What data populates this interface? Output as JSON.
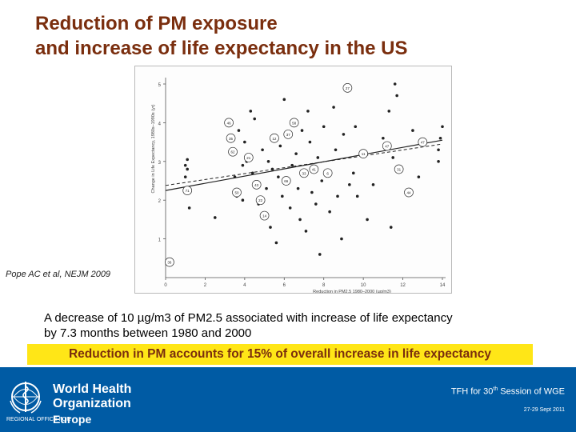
{
  "slide": {
    "title_line1": "Reduction of PM exposure",
    "title_line2": "and increase of life expectancy in the US",
    "citation": "Pope AC et al, NEJM 2009",
    "finding_line1": "A decrease of 10 µg/m3 of PM2.5  associated with increase of life expectancy",
    "finding_line2": "by 7.3 months between 1980 and 2000",
    "highlight": "Reduction in PM accounts for 15% of overall increase in life expectancy"
  },
  "footer": {
    "org_line1": "World Health",
    "org_line2": "Organization",
    "region_label": "REGIONAL OFFICE FOR",
    "region_name": "Europe",
    "session_prefix": "TFH for 30",
    "session_sup": "th",
    "session_suffix": " Session of WGE",
    "dates": "27-29 Sept 2011",
    "colors": {
      "footer_bg": "#005ba4",
      "title": "#7a2e0e",
      "highlight_bg": "#ffe617"
    }
  },
  "chart_data": {
    "type": "scatter",
    "xlabel": "Reduction in PM2.5 1980–2000 (µg/m3)",
    "ylabel": "Change in Life Expectancy, 1980s–1990s (yr)",
    "xlim": [
      0,
      14
    ],
    "ylim": [
      0,
      5
    ],
    "xticks": [
      0,
      2,
      4,
      6,
      8,
      10,
      12,
      14
    ],
    "yticks": [
      1,
      2,
      3,
      4,
      5
    ],
    "regression_solid": {
      "x": [
        0,
        14
      ],
      "y": [
        2.25,
        3.55
      ]
    },
    "regression_dashed": {
      "x": [
        0,
        14
      ],
      "y": [
        2.38,
        3.45
      ]
    },
    "points": [
      {
        "x": 0.2,
        "y": 0.4,
        "label": "36"
      },
      {
        "x": 1.1,
        "y": 2.25,
        "label": "71"
      },
      {
        "x": 1.1,
        "y": 3.05
      },
      {
        "x": 1.1,
        "y": 2.8
      },
      {
        "x": 1.0,
        "y": 2.9
      },
      {
        "x": 1.0,
        "y": 2.6
      },
      {
        "x": 1.2,
        "y": 1.8
      },
      {
        "x": 2.5,
        "y": 1.55
      },
      {
        "x": 3.2,
        "y": 4.0,
        "label": "46"
      },
      {
        "x": 3.4,
        "y": 3.25,
        "label": "62"
      },
      {
        "x": 3.3,
        "y": 3.6,
        "label": "35"
      },
      {
        "x": 3.5,
        "y": 2.6
      },
      {
        "x": 3.6,
        "y": 2.1
      },
      {
        "x": 3.6,
        "y": 2.2,
        "label": "50"
      },
      {
        "x": 3.7,
        "y": 3.8
      },
      {
        "x": 3.9,
        "y": 2.0
      },
      {
        "x": 3.9,
        "y": 2.9
      },
      {
        "x": 4.0,
        "y": 3.5
      },
      {
        "x": 4.1,
        "y": 3.0
      },
      {
        "x": 4.2,
        "y": 3.1,
        "label": "21"
      },
      {
        "x": 4.3,
        "y": 4.3
      },
      {
        "x": 4.4,
        "y": 2.7
      },
      {
        "x": 4.5,
        "y": 4.1
      },
      {
        "x": 4.6,
        "y": 2.4,
        "label": "43"
      },
      {
        "x": 4.7,
        "y": 1.9
      },
      {
        "x": 4.8,
        "y": 2.0,
        "label": "22"
      },
      {
        "x": 4.9,
        "y": 3.3
      },
      {
        "x": 5.0,
        "y": 1.6,
        "label": "14"
      },
      {
        "x": 5.1,
        "y": 2.3
      },
      {
        "x": 5.2,
        "y": 3.0
      },
      {
        "x": 5.3,
        "y": 1.3
      },
      {
        "x": 5.4,
        "y": 2.8
      },
      {
        "x": 5.5,
        "y": 3.6,
        "label": "12"
      },
      {
        "x": 5.6,
        "y": 0.9
      },
      {
        "x": 5.7,
        "y": 2.6
      },
      {
        "x": 5.8,
        "y": 3.4
      },
      {
        "x": 5.9,
        "y": 2.1
      },
      {
        "x": 6.0,
        "y": 4.6
      },
      {
        "x": 6.1,
        "y": 2.5,
        "label": "66"
      },
      {
        "x": 6.2,
        "y": 3.7,
        "label": "37"
      },
      {
        "x": 6.3,
        "y": 1.8
      },
      {
        "x": 6.4,
        "y": 2.9
      },
      {
        "x": 6.5,
        "y": 4.0,
        "label": "58"
      },
      {
        "x": 6.6,
        "y": 3.2
      },
      {
        "x": 6.7,
        "y": 2.3
      },
      {
        "x": 6.8,
        "y": 1.5
      },
      {
        "x": 6.9,
        "y": 3.8
      },
      {
        "x": 7.0,
        "y": 2.7,
        "label": "33"
      },
      {
        "x": 7.1,
        "y": 1.2
      },
      {
        "x": 7.2,
        "y": 4.3
      },
      {
        "x": 7.3,
        "y": 3.5
      },
      {
        "x": 7.4,
        "y": 2.2
      },
      {
        "x": 7.5,
        "y": 2.8,
        "label": "41"
      },
      {
        "x": 7.6,
        "y": 1.9
      },
      {
        "x": 7.7,
        "y": 3.1
      },
      {
        "x": 7.8,
        "y": 0.6
      },
      {
        "x": 7.9,
        "y": 2.5
      },
      {
        "x": 8.0,
        "y": 3.9
      },
      {
        "x": 8.2,
        "y": 2.7,
        "label": "6"
      },
      {
        "x": 8.3,
        "y": 1.7
      },
      {
        "x": 8.5,
        "y": 4.4
      },
      {
        "x": 8.6,
        "y": 3.3
      },
      {
        "x": 8.7,
        "y": 2.1
      },
      {
        "x": 8.9,
        "y": 1.0
      },
      {
        "x": 9.0,
        "y": 3.7
      },
      {
        "x": 9.2,
        "y": 4.9,
        "label": "27"
      },
      {
        "x": 9.3,
        "y": 2.4
      },
      {
        "x": 9.5,
        "y": 2.7
      },
      {
        "x": 9.6,
        "y": 3.9
      },
      {
        "x": 9.7,
        "y": 2.1
      },
      {
        "x": 10.0,
        "y": 3.2,
        "label": "11"
      },
      {
        "x": 10.2,
        "y": 1.5
      },
      {
        "x": 10.5,
        "y": 2.4
      },
      {
        "x": 11.0,
        "y": 3.6
      },
      {
        "x": 11.2,
        "y": 3.4,
        "label": "47"
      },
      {
        "x": 11.3,
        "y": 4.3
      },
      {
        "x": 11.4,
        "y": 1.3
      },
      {
        "x": 11.5,
        "y": 3.1
      },
      {
        "x": 11.6,
        "y": 5.0
      },
      {
        "x": 11.7,
        "y": 4.7
      },
      {
        "x": 11.8,
        "y": 2.8,
        "label": "31"
      },
      {
        "x": 12.3,
        "y": 2.2,
        "label": "44"
      },
      {
        "x": 12.5,
        "y": 3.8
      },
      {
        "x": 12.8,
        "y": 2.6
      },
      {
        "x": 13.0,
        "y": 3.5,
        "label": "47"
      },
      {
        "x": 13.8,
        "y": 3.0
      },
      {
        "x": 13.8,
        "y": 3.3
      },
      {
        "x": 13.9,
        "y": 3.6
      },
      {
        "x": 14.0,
        "y": 3.9
      }
    ]
  }
}
